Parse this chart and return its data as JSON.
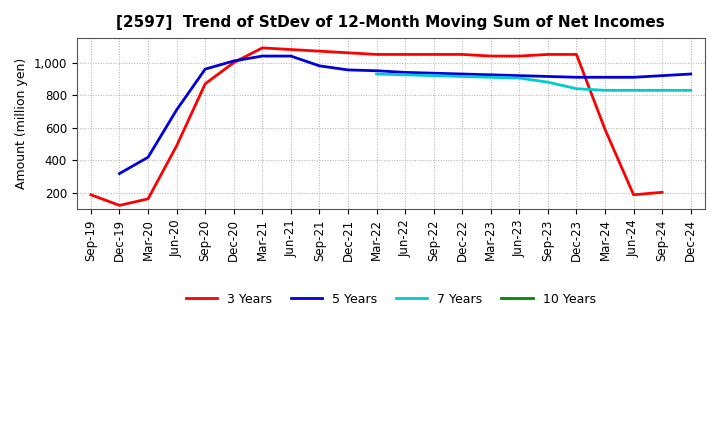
{
  "title": "[2597]  Trend of StDev of 12-Month Moving Sum of Net Incomes",
  "ylabel": "Amount (million yen)",
  "background_color": "#ffffff",
  "grid_color": "#b0b0b0",
  "x_labels": [
    "Sep-19",
    "Dec-19",
    "Mar-20",
    "Jun-20",
    "Sep-20",
    "Dec-20",
    "Mar-21",
    "Jun-21",
    "Sep-21",
    "Dec-21",
    "Mar-22",
    "Jun-22",
    "Sep-22",
    "Dec-22",
    "Mar-23",
    "Jun-23",
    "Sep-23",
    "Dec-23",
    "Mar-24",
    "Jun-24",
    "Sep-24",
    "Dec-24"
  ],
  "series": {
    "3 Years": {
      "color": "#ff0000",
      "linewidth": 2.0,
      "data_x": [
        0,
        1,
        2,
        3,
        4,
        5,
        6,
        7,
        8,
        9,
        10,
        11,
        12,
        13,
        14,
        15,
        16,
        17,
        18,
        19,
        20
      ],
      "data_y": [
        190,
        125,
        165,
        490,
        870,
        1000,
        1090,
        1080,
        1070,
        1060,
        1050,
        1050,
        1050,
        1050,
        1040,
        1040,
        1050,
        1050,
        590,
        190,
        205
      ]
    },
    "5 Years": {
      "color": "#0000dd",
      "linewidth": 2.0,
      "data_x": [
        1,
        2,
        3,
        4,
        5,
        6,
        7,
        8,
        9,
        10,
        11,
        12,
        13,
        14,
        15,
        16,
        17,
        18,
        19,
        20,
        21
      ],
      "data_y": [
        320,
        420,
        710,
        960,
        1010,
        1040,
        1040,
        980,
        955,
        950,
        940,
        935,
        930,
        925,
        920,
        915,
        910,
        910,
        910,
        920,
        930
      ]
    },
    "7 Years": {
      "color": "#00cccc",
      "linewidth": 2.0,
      "data_x": [
        10,
        11,
        12,
        13,
        14,
        15,
        16,
        17,
        18,
        19,
        20,
        21
      ],
      "data_y": [
        930,
        925,
        920,
        915,
        910,
        905,
        880,
        840,
        830,
        830,
        830,
        830
      ]
    },
    "10 Years": {
      "color": "#008800",
      "linewidth": 2.0,
      "data_x": [],
      "data_y": []
    }
  },
  "ylim": [
    100,
    1150
  ],
  "yticks": [
    200,
    400,
    600,
    800,
    1000
  ],
  "ytick_labels": [
    "200",
    "400",
    "600",
    "800",
    "1,000"
  ],
  "title_fontsize": 11,
  "axis_fontsize": 9,
  "tick_fontsize": 8.5
}
